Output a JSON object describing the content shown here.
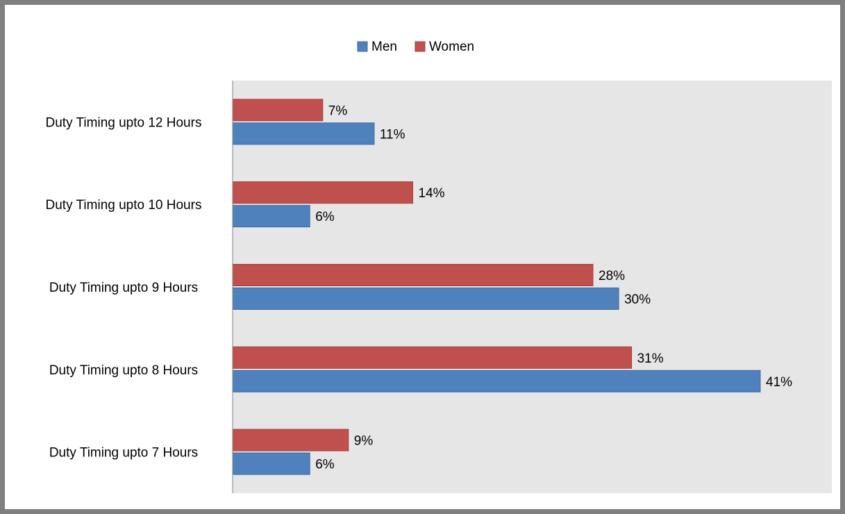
{
  "chart_data": {
    "type": "bar",
    "orientation": "horizontal",
    "categories": [
      "Duty Timing upto 12 Hours",
      "Duty Timing upto 10 Hours",
      "Duty Timing upto 9 Hours",
      "Duty Timing upto 8 Hours",
      "Duty Timing upto 7 Hours"
    ],
    "series": [
      {
        "name": "Men",
        "values": [
          11,
          6,
          30,
          41,
          6
        ],
        "color": "#4f81bd"
      },
      {
        "name": "Women",
        "values": [
          7,
          14,
          28,
          31,
          9
        ],
        "color": "#c0504d"
      }
    ],
    "value_format": "percent",
    "xlim": [
      0,
      45
    ],
    "grid": false,
    "legend": "top"
  }
}
